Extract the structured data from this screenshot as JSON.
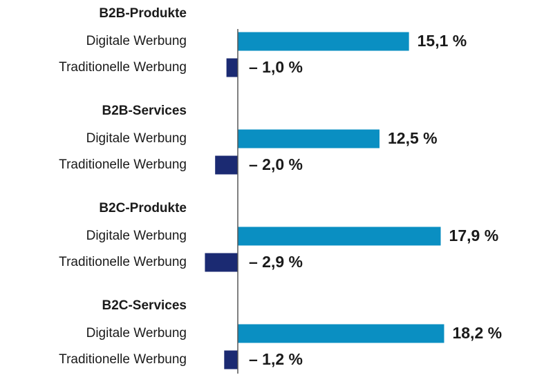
{
  "chart_data": {
    "type": "bar",
    "orientation": "horizontal",
    "title": "",
    "xlabel": "",
    "ylabel": "",
    "grid": false,
    "legend": "none",
    "categories": [
      "B2B-Produkte",
      "B2B-Services",
      "B2C-Produkte",
      "B2C-Services"
    ],
    "series": [
      {
        "name": "Digitale Werbung",
        "color": "#0a8fc2",
        "values": [
          15.1,
          12.5,
          17.9,
          18.2
        ],
        "labels": [
          "15,1 %",
          "12,5 %",
          "17,9 %",
          "18,2 %"
        ]
      },
      {
        "name": "Traditionelle Werbung",
        "color": "#1b2a72",
        "values": [
          -1.0,
          -2.0,
          -2.9,
          -1.2
        ],
        "labels": [
          "– 1,0 %",
          "– 2,0 %",
          "– 2,9 %",
          "– 1,2 %"
        ]
      }
    ],
    "axis_color": "#555555"
  }
}
